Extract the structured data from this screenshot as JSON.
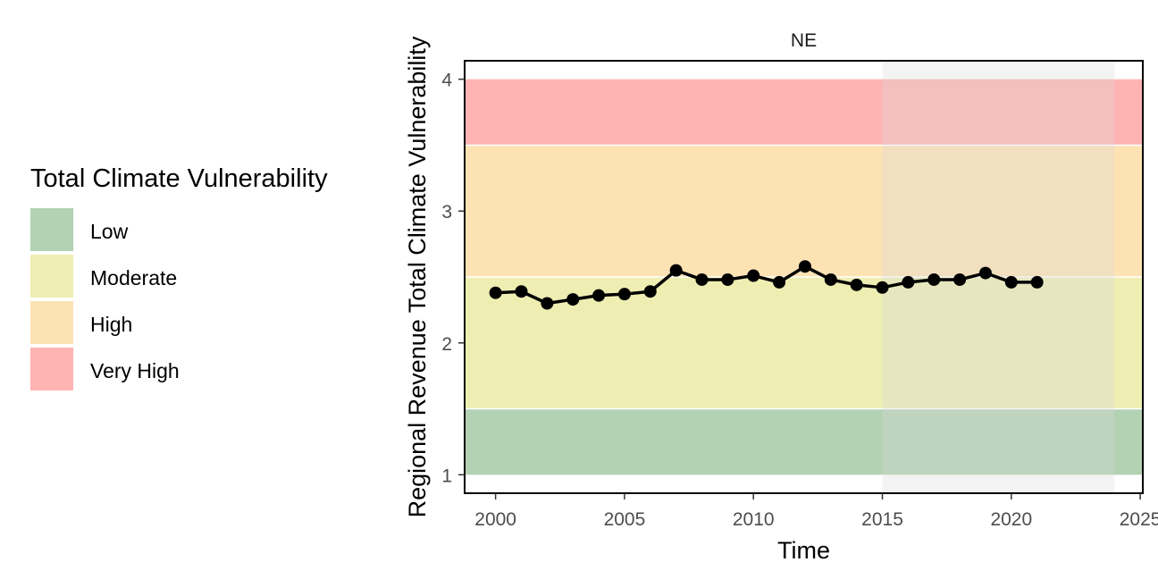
{
  "chart_data": {
    "type": "line",
    "facet_title": "NE",
    "xlabel": "Time",
    "ylabel": "Regional Revenue Total Climate Vulnerability",
    "xlim": [
      1998.8,
      2025.1
    ],
    "ylim": [
      0.86,
      4.14
    ],
    "x_ticks": [
      2000,
      2005,
      2010,
      2015,
      2020,
      2025
    ],
    "y_ticks": [
      1,
      2,
      3,
      4
    ],
    "x_tick_labels": [
      "2000",
      "2005",
      "2010",
      "2015",
      "2020",
      "2025"
    ],
    "y_tick_labels": [
      "1",
      "2",
      "3",
      "4"
    ],
    "grid": false,
    "highlight_range": [
      2015,
      2024
    ],
    "highlight_color": "#d9d9d9",
    "bands": [
      {
        "name": "Low",
        "from": 1.0,
        "to": 1.5,
        "color": "#b3d1b3"
      },
      {
        "name": "Moderate",
        "from": 1.5,
        "to": 2.5,
        "color": "#eeeeb3"
      },
      {
        "name": "High",
        "from": 2.5,
        "to": 3.5,
        "color": "#fde2b3"
      },
      {
        "name": "Very High",
        "from": 3.5,
        "to": 4.0,
        "color": "#ffb3b3"
      }
    ],
    "series": [
      {
        "x": [
          2000,
          2001,
          2002,
          2003,
          2004,
          2005,
          2006,
          2007,
          2008,
          2009,
          2010,
          2011,
          2012,
          2013,
          2014,
          2015,
          2016,
          2017,
          2018,
          2019,
          2020,
          2021
        ],
        "values": [
          2.38,
          2.39,
          2.3,
          2.33,
          2.36,
          2.37,
          2.39,
          2.55,
          2.48,
          2.48,
          2.51,
          2.46,
          2.58,
          2.48,
          2.44,
          2.42,
          2.46,
          2.48,
          2.48,
          2.53,
          2.46,
          2.46
        ],
        "color": "#000000"
      }
    ],
    "legend": {
      "title": "Total Climate Vulnerability",
      "placement": "left",
      "entries": [
        {
          "label": "Low",
          "color": "#b3d1b3"
        },
        {
          "label": "Moderate",
          "color": "#eeeeb3"
        },
        {
          "label": "High",
          "color": "#fde2b3"
        },
        {
          "label": "Very High",
          "color": "#ffb3b3"
        }
      ]
    }
  }
}
